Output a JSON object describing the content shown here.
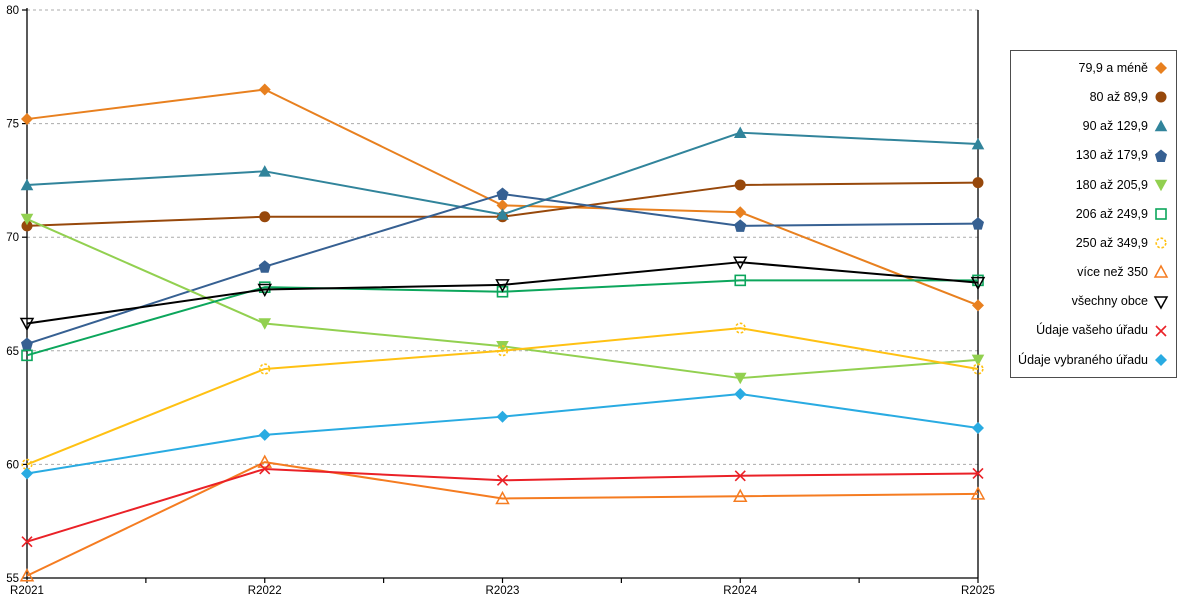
{
  "chart_data": {
    "type": "line",
    "title": "",
    "xlabel": "",
    "ylabel": "",
    "categories": [
      "R2021",
      "R2022",
      "R2023",
      "R2024",
      "R2025"
    ],
    "y_axis": {
      "min": 55,
      "max": 80,
      "step": 5,
      "tick_labels": [
        "55",
        "60",
        "65",
        "70",
        "75",
        "80"
      ]
    },
    "grid": "horizontal-dashed",
    "legend_position": "right-outside-top",
    "series": [
      {
        "name": "79,9 a méně",
        "marker": "diamond-filled",
        "color": "#e8801f",
        "values": [
          75.2,
          76.5,
          71.4,
          71.1,
          67.0
        ]
      },
      {
        "name": "80 až 89,9",
        "marker": "circle-filled",
        "color": "#97480b",
        "values": [
          70.5,
          70.9,
          70.9,
          72.3,
          72.4
        ]
      },
      {
        "name": "90 až 129,9",
        "marker": "triangle-up-filled",
        "color": "#31849b",
        "values": [
          72.3,
          72.9,
          71.0,
          74.6,
          74.1
        ]
      },
      {
        "name": "130 až 179,9",
        "marker": "pentagon-filled",
        "color": "#366092",
        "values": [
          65.3,
          68.7,
          71.9,
          70.5,
          70.6
        ]
      },
      {
        "name": "180 až 205,9",
        "marker": "triangle-down-filled",
        "color": "#92d050",
        "values": [
          70.8,
          66.2,
          65.2,
          63.8,
          64.6
        ]
      },
      {
        "name": "206 až 249,9",
        "marker": "square-open",
        "color": "#0ca65c",
        "values": [
          64.8,
          67.8,
          67.6,
          68.1,
          68.1
        ]
      },
      {
        "name": "250 až 349,9",
        "marker": "circle-open-dashed",
        "color": "#ffc113",
        "values": [
          60.0,
          64.2,
          65.0,
          66.0,
          64.2
        ]
      },
      {
        "name": "více než 350",
        "marker": "triangle-up-open",
        "color": "#f57c21",
        "values": [
          55.1,
          60.1,
          58.5,
          58.6,
          58.7
        ]
      },
      {
        "name": "všechny obce",
        "marker": "triangle-down-open",
        "color": "#000000",
        "values": [
          66.2,
          67.7,
          67.9,
          68.9,
          68.0
        ]
      },
      {
        "name": "Údaje vašeho úřadu",
        "marker": "x-cross",
        "color": "#ea2127",
        "values": [
          56.6,
          59.8,
          59.3,
          59.5,
          59.6
        ]
      },
      {
        "name": "Údaje vybraného úřadu",
        "marker": "diamond-filled",
        "color": "#29abe2",
        "values": [
          59.6,
          61.3,
          62.1,
          63.1,
          61.6
        ]
      }
    ]
  }
}
